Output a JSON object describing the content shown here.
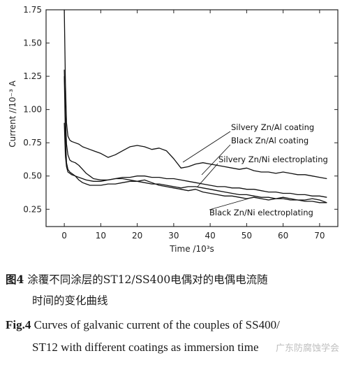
{
  "chart_data": {
    "type": "line",
    "xlabel": "Time /10³s",
    "ylabel": "Current //10⁻³ A",
    "xlim": [
      -5,
      75
    ],
    "ylim": [
      0.12,
      1.75
    ],
    "x_ticks": [
      0,
      10,
      20,
      30,
      40,
      50,
      60,
      70
    ],
    "y_ticks": [
      0.25,
      0.5,
      0.75,
      1.0,
      1.25,
      1.5,
      1.75
    ],
    "grid": false,
    "series": [
      {
        "name": "Silvery Zn/Al coating",
        "x": [
          0,
          0.3,
          0.6,
          1,
          1.5,
          2,
          3,
          4,
          5,
          6,
          7,
          8,
          9,
          10,
          12,
          14,
          16,
          18,
          20,
          22,
          24,
          26,
          28,
          30,
          32,
          34,
          36,
          38,
          40,
          42,
          44,
          46,
          48,
          50,
          52,
          54,
          56,
          58,
          60,
          62,
          64,
          66,
          68,
          70,
          72
        ],
        "y": [
          1.75,
          1.2,
          0.9,
          0.8,
          0.77,
          0.76,
          0.75,
          0.74,
          0.72,
          0.71,
          0.7,
          0.69,
          0.68,
          0.67,
          0.64,
          0.66,
          0.69,
          0.72,
          0.73,
          0.72,
          0.7,
          0.71,
          0.69,
          0.63,
          0.56,
          0.57,
          0.59,
          0.6,
          0.59,
          0.58,
          0.57,
          0.56,
          0.55,
          0.56,
          0.54,
          0.53,
          0.53,
          0.52,
          0.53,
          0.52,
          0.51,
          0.51,
          0.5,
          0.49,
          0.48
        ]
      },
      {
        "name": "Black Zn/Al coating",
        "x": [
          0,
          0.3,
          0.6,
          1,
          1.5,
          2,
          3,
          4,
          5,
          6,
          7,
          8,
          10,
          12,
          14,
          16,
          18,
          20,
          22,
          24,
          26,
          28,
          30,
          32,
          34,
          36,
          38,
          40,
          42,
          44,
          46,
          48,
          50,
          52,
          54,
          56,
          58,
          60,
          62,
          64,
          66,
          68,
          70,
          72
        ],
        "y": [
          1.3,
          0.95,
          0.74,
          0.66,
          0.62,
          0.61,
          0.6,
          0.58,
          0.55,
          0.52,
          0.5,
          0.48,
          0.47,
          0.47,
          0.48,
          0.48,
          0.47,
          0.46,
          0.45,
          0.44,
          0.44,
          0.43,
          0.42,
          0.41,
          0.42,
          0.42,
          0.41,
          0.4,
          0.39,
          0.38,
          0.37,
          0.36,
          0.36,
          0.35,
          0.34,
          0.34,
          0.33,
          0.33,
          0.32,
          0.32,
          0.31,
          0.31,
          0.3,
          0.3
        ]
      },
      {
        "name": "Silvery Zn/Ni electroplating",
        "x": [
          0,
          0.3,
          0.6,
          1,
          1.5,
          2,
          3,
          4,
          5,
          6,
          8,
          10,
          12,
          14,
          16,
          18,
          20,
          22,
          24,
          26,
          28,
          30,
          32,
          34,
          36,
          38,
          40,
          42,
          44,
          46,
          48,
          50,
          52,
          54,
          56,
          58,
          60,
          62,
          64,
          66,
          68,
          70,
          72
        ],
        "y": [
          0.9,
          0.65,
          0.57,
          0.53,
          0.52,
          0.51,
          0.5,
          0.49,
          0.48,
          0.47,
          0.46,
          0.46,
          0.47,
          0.48,
          0.49,
          0.49,
          0.5,
          0.5,
          0.49,
          0.49,
          0.48,
          0.48,
          0.47,
          0.46,
          0.45,
          0.44,
          0.43,
          0.42,
          0.42,
          0.41,
          0.41,
          0.4,
          0.4,
          0.39,
          0.38,
          0.38,
          0.37,
          0.37,
          0.36,
          0.36,
          0.35,
          0.35,
          0.34
        ]
      },
      {
        "name": "Black Zn/Ni electroplating",
        "x": [
          0,
          0.3,
          0.6,
          1,
          1.5,
          2,
          3,
          4,
          5,
          6,
          7,
          8,
          10,
          12,
          14,
          16,
          18,
          20,
          22,
          24,
          26,
          28,
          30,
          32,
          34,
          36,
          38,
          40,
          42,
          44,
          46,
          48,
          50,
          52,
          54,
          56,
          58,
          60,
          62,
          64,
          66,
          68,
          70,
          72
        ],
        "y": [
          1.25,
          0.8,
          0.6,
          0.55,
          0.53,
          0.52,
          0.5,
          0.47,
          0.45,
          0.44,
          0.43,
          0.43,
          0.43,
          0.44,
          0.44,
          0.45,
          0.46,
          0.46,
          0.47,
          0.45,
          0.43,
          0.42,
          0.41,
          0.4,
          0.39,
          0.4,
          0.38,
          0.37,
          0.36,
          0.35,
          0.35,
          0.34,
          0.33,
          0.34,
          0.33,
          0.32,
          0.33,
          0.34,
          0.33,
          0.32,
          0.32,
          0.33,
          0.32,
          0.3
        ]
      }
    ],
    "annotations": [
      {
        "text": "Silvery Zn/Al coating"
      },
      {
        "text": "Black Zn/Al coating"
      },
      {
        "text": "Silvery Zn/Ni electroplating"
      },
      {
        "text": "Black Zn/Ni electroplating"
      }
    ]
  },
  "caption": {
    "cn_label": "图4",
    "cn_line1": "涂覆不同涂层的ST12/SS400电偶对的电偶电流随",
    "cn_line2": "时间的变化曲线",
    "en_label": "Fig.4",
    "en_line1": "Curves of galvanic current of the couples of SS400/",
    "en_line2": "ST12 with different coatings as immersion time"
  },
  "watermark": "广东防腐蚀学会"
}
